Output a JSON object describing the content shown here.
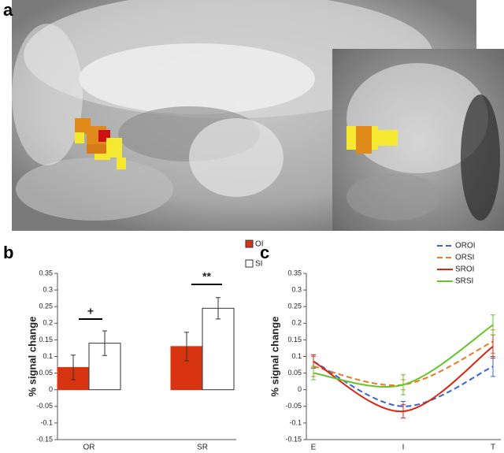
{
  "panel_labels": [
    "a",
    "b",
    "c"
  ],
  "chart_data": [
    {
      "type": "bar",
      "y_label": "% signal change",
      "categories": [
        "OR",
        "SR"
      ],
      "series": [
        {
          "name": "OI",
          "color": "#d8340f",
          "values": [
            0.067,
            0.13
          ],
          "errors": [
            0.037,
            0.043
          ]
        },
        {
          "name": "SI",
          "color": "#ffffff",
          "values": [
            0.14,
            0.245
          ],
          "errors": [
            0.037,
            0.032
          ]
        }
      ],
      "annotations": [
        "+",
        "**"
      ],
      "ylim": [
        -0.15,
        0.35
      ],
      "yticks": [
        -0.15,
        -0.1,
        -0.05,
        0,
        0.05,
        0.1,
        0.15,
        0.2,
        0.25,
        0.3,
        0.35
      ]
    },
    {
      "type": "line",
      "y_label": "% signal change",
      "categories": [
        "E",
        "I",
        "T"
      ],
      "series": [
        {
          "name": "OROI",
          "color": "#3a62d6",
          "style": "dashed",
          "values": [
            0.085,
            -0.05,
            0.07
          ],
          "errors": [
            0.02,
            0.015,
            0.03
          ]
        },
        {
          "name": "ORSI",
          "color": "#ec7a22",
          "style": "dashed",
          "values": [
            0.07,
            0.015,
            0.145
          ],
          "errors": [
            0.03,
            0.015,
            0.035
          ]
        },
        {
          "name": "SROI",
          "color": "#d8260f",
          "style": "solid",
          "values": [
            0.085,
            -0.065,
            0.13
          ],
          "errors": [
            0.02,
            0.02,
            0.035
          ]
        },
        {
          "name": "SRSI",
          "color": "#66c42a",
          "style": "solid",
          "values": [
            0.05,
            0.015,
            0.195
          ],
          "errors": [
            0.02,
            0.03,
            0.03
          ]
        }
      ],
      "ylim": [
        -0.15,
        0.35
      ],
      "yticks": [
        -0.15,
        -0.1,
        -0.05,
        0,
        0.05,
        0.1,
        0.15,
        0.2,
        0.25,
        0.3,
        0.35
      ]
    }
  ]
}
